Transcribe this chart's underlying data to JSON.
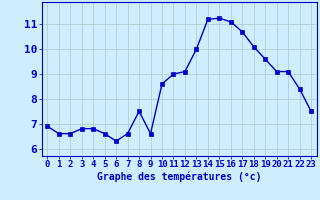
{
  "hours": [
    0,
    1,
    2,
    3,
    4,
    5,
    6,
    7,
    8,
    9,
    10,
    11,
    12,
    13,
    14,
    15,
    16,
    17,
    18,
    19,
    20,
    21,
    22,
    23
  ],
  "temps": [
    6.9,
    6.6,
    6.6,
    6.8,
    6.8,
    6.6,
    6.3,
    6.6,
    7.5,
    6.6,
    8.6,
    9.0,
    9.1,
    10.0,
    11.2,
    11.25,
    11.1,
    10.7,
    10.1,
    9.6,
    9.1,
    9.1,
    8.4,
    7.5
  ],
  "line_color": "#0000cc",
  "marker": "s",
  "markersize": 2.5,
  "linewidth": 1.0,
  "bg_color": "#cceeff",
  "grid_color": "#aacccc",
  "axis_color": "#0000cc",
  "xlabel": "Graphe des températures (°c)",
  "xlabel_fontsize": 7,
  "tick_fontsize": 6.5,
  "ytick_fontsize": 8,
  "ylim": [
    5.7,
    11.9
  ],
  "xlim": [
    -0.5,
    23.5
  ],
  "yticks": [
    6,
    7,
    8,
    9,
    10,
    11
  ],
  "xticks": [
    0,
    1,
    2,
    3,
    4,
    5,
    6,
    7,
    8,
    9,
    10,
    11,
    12,
    13,
    14,
    15,
    16,
    17,
    18,
    19,
    20,
    21,
    22,
    23
  ]
}
